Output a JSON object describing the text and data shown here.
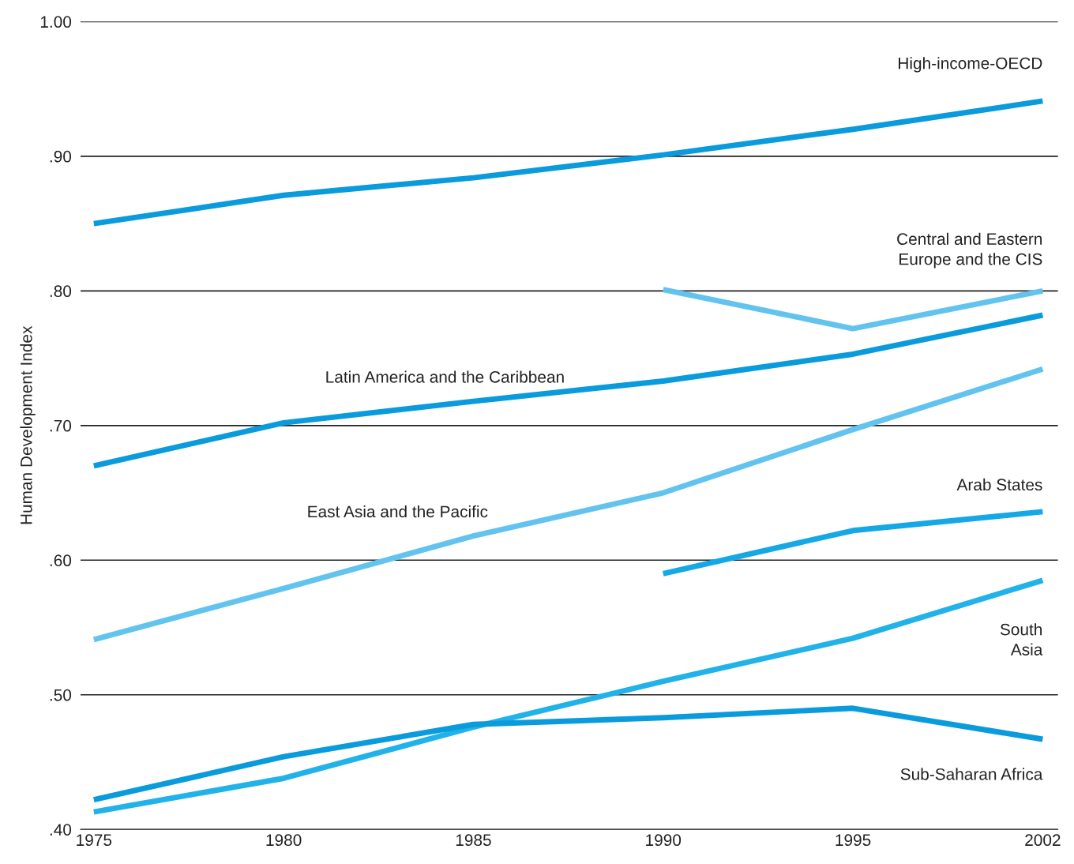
{
  "chart_data": {
    "type": "line",
    "ylabel": "Human Development Index",
    "categories": [
      "1975",
      "1980",
      "1985",
      "1990",
      "1995",
      "2002"
    ],
    "series": [
      {
        "name": "High-income-OECD",
        "color": "#0a9bdc",
        "values": [
          0.85,
          0.871,
          0.884,
          0.901,
          0.92,
          0.941
        ]
      },
      {
        "name": "Central and Eastern\nEurope and the CIS",
        "color": "#62c4ee",
        "values": [
          null,
          null,
          null,
          0.801,
          0.772,
          0.8
        ]
      },
      {
        "name": "Latin America and the Caribbean",
        "color": "#0a9bdc",
        "values": [
          0.67,
          0.702,
          0.718,
          0.733,
          0.753,
          0.782
        ]
      },
      {
        "name": "East Asia and the Pacific",
        "color": "#62c4ee",
        "values": [
          0.541,
          0.579,
          0.618,
          0.65,
          0.697,
          0.742
        ]
      },
      {
        "name": "Arab States",
        "color": "#14a8e6",
        "values": [
          null,
          null,
          null,
          0.59,
          0.622,
          0.636
        ]
      },
      {
        "name": "South\nAsia",
        "color": "#22b2ea",
        "values": [
          0.413,
          0.438,
          0.476,
          0.51,
          0.542,
          0.585
        ]
      },
      {
        "name": "Sub-Saharan Africa",
        "color": "#0a9bdc",
        "values": [
          0.422,
          0.454,
          0.478,
          0.483,
          0.49,
          0.467
        ]
      }
    ],
    "ylim": [
      0.4,
      1.0
    ],
    "yticks": [
      {
        "value": 0.4,
        "label": ".40"
      },
      {
        "value": 0.5,
        "label": ".50"
      },
      {
        "value": 0.6,
        "label": ".60"
      },
      {
        "value": 0.7,
        "label": ".70"
      },
      {
        "value": 0.8,
        "label": ".80"
      },
      {
        "value": 0.9,
        "label": ".90"
      },
      {
        "value": 1.0,
        "label": "1.00"
      }
    ],
    "grid": "y",
    "legend": false,
    "marker": "none",
    "line_style": "solid"
  }
}
